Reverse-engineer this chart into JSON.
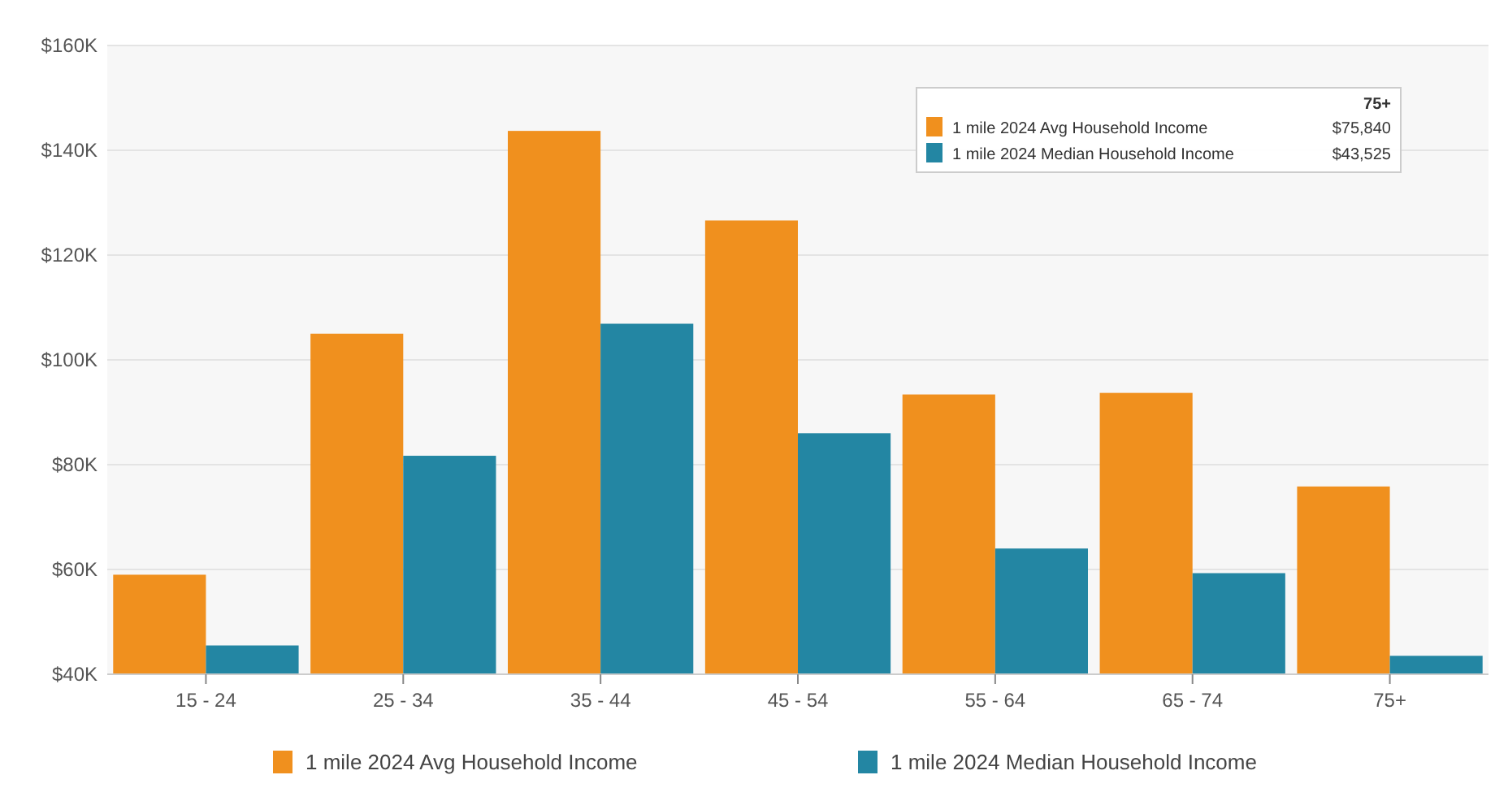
{
  "chart_data": {
    "type": "bar",
    "categories": [
      "15 - 24",
      "25 - 34",
      "35 - 44",
      "45 - 54",
      "55 - 64",
      "65 - 74",
      "75+"
    ],
    "series": [
      {
        "name": "1 mile 2024 Avg Household Income",
        "color": "#f0901e",
        "values": [
          59,
          105,
          143.7,
          126.6,
          93.4,
          93.7,
          75.84
        ]
      },
      {
        "name": "1 mile 2024 Median Household Income",
        "color": "#2386a3",
        "values": [
          45.5,
          81.7,
          106.9,
          86,
          64,
          59.3,
          43.525
        ]
      }
    ],
    "ylim": [
      40,
      160
    ],
    "yticks": [
      {
        "value": 40,
        "label": "$40K"
      },
      {
        "value": 60,
        "label": "$60K"
      },
      {
        "value": 80,
        "label": "$80K"
      },
      {
        "value": 100,
        "label": "$100K"
      },
      {
        "value": 120,
        "label": "$120K"
      },
      {
        "value": 140,
        "label": "$140K"
      },
      {
        "value": 160,
        "label": "$160K"
      }
    ],
    "annotations": [
      "75+",
      "$75,840",
      "$43,525"
    ],
    "grid": "y",
    "legend": "bottom"
  }
}
